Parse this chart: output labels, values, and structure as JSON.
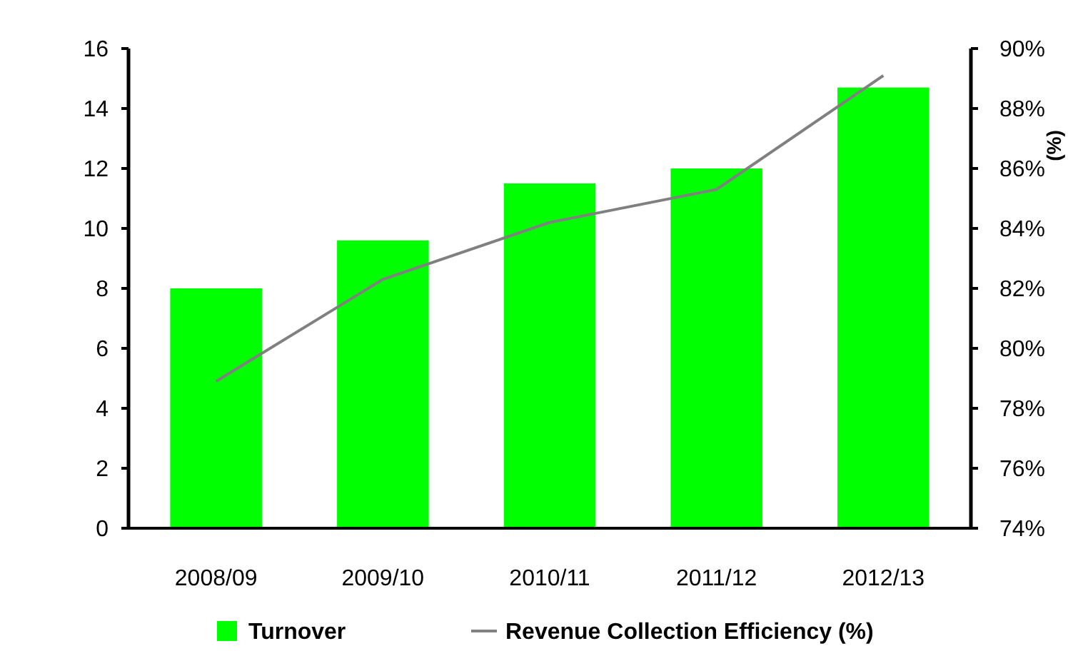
{
  "chart_data": {
    "type": "bar",
    "categories": [
      "2008/09",
      "2009/10",
      "2010/11",
      "2011/12",
      "2012/13"
    ],
    "series": [
      {
        "name": "Turnover",
        "color": "#00ff00",
        "values": [
          8.0,
          9.6,
          11.5,
          12.0,
          14.7
        ]
      },
      {
        "name": "Revenue Collection Efficiency (%)",
        "type": "line",
        "axis": "y2",
        "color": "#808080",
        "values": [
          78.9,
          82.3,
          84.2,
          85.3,
          89.1
        ]
      }
    ],
    "ylim": [
      0,
      16
    ],
    "yticks": [
      0,
      2,
      4,
      6,
      8,
      10,
      12,
      14,
      16
    ],
    "y2lim": [
      74,
      90
    ],
    "y2ticks": [
      {
        "value": 74,
        "label": "74%"
      },
      {
        "value": 76,
        "label": "76%"
      },
      {
        "value": 78,
        "label": "78%"
      },
      {
        "value": 80,
        "label": "80%"
      },
      {
        "value": 82,
        "label": "82%"
      },
      {
        "value": 84,
        "label": "84%"
      },
      {
        "value": 86,
        "label": "86%"
      },
      {
        "value": 88,
        "label": "88%"
      },
      {
        "value": 90,
        "label": "90%"
      }
    ],
    "y2label": "(%)",
    "legend": "bottom",
    "grid": false
  }
}
